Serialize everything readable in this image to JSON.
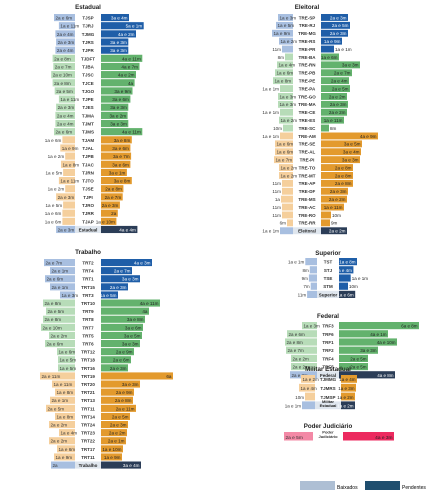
{
  "colors": {
    "baixados_light": "#a8bfe0",
    "pendentes_dark": "#1f5ea8",
    "green_light": "#b7dcb8",
    "green": "#63b26d",
    "orange_light": "#f5cf9c",
    "orange": "#e39a2d",
    "pink_light": "#f389a6",
    "pink": "#ec2a5f",
    "group_separator": "#2b3d57",
    "group_separator_label": "#ffffff",
    "legend_baixados": "#aebfd4",
    "legend_pendentes": "#1f4e6e"
  },
  "legend": {
    "baixados": "Baixados",
    "pendentes": "Pendentes"
  },
  "chart_data": [
    {
      "type": "bar",
      "title": "Estadual",
      "series": [
        {
          "name": "Baixados"
        },
        {
          "name": "Pendentes"
        }
      ],
      "rows": [
        {
          "label": "TJSP",
          "left": "2a e 6m",
          "right": "3a e 4m",
          "l": 30,
          "r": 40,
          "c": "blue"
        },
        {
          "label": "TJRJ",
          "left": "1a e 11m",
          "right": "5a e 1m",
          "l": 23,
          "r": 61,
          "c": "blue"
        },
        {
          "label": "TJMG",
          "left": "2a e 4m",
          "right": "4a e 2m",
          "l": 28,
          "r": 50,
          "c": "blue"
        },
        {
          "label": "TJRS",
          "left": "2a e 3m",
          "right": "3a e 3m",
          "l": 27,
          "r": 39,
          "c": "blue"
        },
        {
          "label": "TJPR",
          "left": "2a e 4m",
          "right": "3a e 3m",
          "l": 28,
          "r": 39,
          "c": "blue"
        },
        {
          "label": "TJDFT",
          "left": "2a e 8m",
          "right": "4a e 11m",
          "l": 32,
          "r": 59,
          "c": "green"
        },
        {
          "label": "TJBA",
          "left": "2a e 7m",
          "right": "4a e 7m",
          "l": 31,
          "r": 55,
          "c": "green"
        },
        {
          "label": "TJSC",
          "left": "2a e 10m",
          "right": "4a e 2m",
          "l": 34,
          "r": 50,
          "c": "green"
        },
        {
          "label": "TJCE",
          "left": "2a e 8m",
          "right": "4a",
          "l": 32,
          "r": 48,
          "c": "green"
        },
        {
          "label": "TJGO",
          "left": "2a e 5m",
          "right": "3a e 9m",
          "l": 29,
          "r": 45,
          "c": "green"
        },
        {
          "label": "TJPE",
          "left": "1a e 11m",
          "right": "3a e 6m",
          "l": 23,
          "r": 42,
          "c": "green"
        },
        {
          "label": "TJES",
          "left": "2a e 3m",
          "right": "3a e 3m",
          "l": 27,
          "r": 39,
          "c": "green"
        },
        {
          "label": "TJMA",
          "left": "2a e 4m",
          "right": "3a e 2m",
          "l": 28,
          "r": 38,
          "c": "green"
        },
        {
          "label": "TJMT",
          "left": "2a e 4m",
          "right": "3a e 3m",
          "l": 28,
          "r": 39,
          "c": "green"
        },
        {
          "label": "TJMS",
          "left": "2a e 6m",
          "right": "4a e 11m",
          "l": 30,
          "r": 59,
          "c": "green"
        },
        {
          "label": "TJAM",
          "left": "1a e 6m",
          "right": "3a e 8m",
          "l": 18,
          "r": 44,
          "c": "orange"
        },
        {
          "label": "TJAL",
          "left": "1a e 9m",
          "right": "3a e 6m",
          "l": 21,
          "r": 42,
          "c": "orange"
        },
        {
          "label": "TJPB",
          "left": "1a e 2m",
          "right": "3a e 7m",
          "l": 14,
          "r": 43,
          "c": "orange"
        },
        {
          "label": "TJAC",
          "left": "1a e 8m",
          "right": "3a e 6m",
          "l": 20,
          "r": 42,
          "c": "orange"
        },
        {
          "label": "TJRN",
          "left": "1a e 5m",
          "right": "3a e 1m",
          "l": 17,
          "r": 37,
          "c": "orange"
        },
        {
          "label": "TJTO",
          "left": "1a e 11m",
          "right": "3a e 8m",
          "l": 23,
          "r": 44,
          "c": "orange"
        },
        {
          "label": "TJSE",
          "left": "1a e 2m",
          "right": "2a e 8m",
          "l": 14,
          "r": 32,
          "c": "orange"
        },
        {
          "label": "TJPI",
          "left": "2a e 3m",
          "right": "2a e 7m",
          "l": 27,
          "r": 31,
          "c": "orange"
        },
        {
          "label": "TJRO",
          "left": "1a e 5m",
          "right": "2a e 3m",
          "l": 17,
          "r": 27,
          "c": "orange"
        },
        {
          "label": "TJRR",
          "left": "1a e 6m",
          "right": "2a",
          "l": 18,
          "r": 24,
          "c": "orange"
        },
        {
          "label": "TJAP",
          "left": "1a e 6m",
          "right": "1a e 10m",
          "l": 18,
          "r": 22,
          "c": "orange"
        },
        {
          "label": "Estadual",
          "left": "2a e 3m",
          "right": "4a e 4m",
          "l": 27,
          "r": 52,
          "c": "total"
        }
      ]
    },
    {
      "type": "bar",
      "title": "Eleitoral",
      "series": [
        {
          "name": "Baixados"
        },
        {
          "name": "Pendentes"
        }
      ],
      "rows": [
        {
          "label": "TRE-SP",
          "left": "1a e 3m",
          "right": "2a e 3m",
          "l": 15,
          "r": 27,
          "c": "blue"
        },
        {
          "label": "TRE-RJ",
          "left": "1a e 5m",
          "right": "2a e 5m",
          "l": 17,
          "r": 29,
          "c": "blue"
        },
        {
          "label": "TRE-MG",
          "left": "1a e 9m",
          "right": "2a e 3m",
          "l": 21,
          "r": 27,
          "c": "blue"
        },
        {
          "label": "TRE-RS",
          "left": "1a e 2m",
          "right": "1a e 9m",
          "l": 14,
          "r": 21,
          "c": "blue"
        },
        {
          "label": "TRE-PR",
          "left": "11m",
          "right": "1a e 1m",
          "l": 11,
          "r": 13,
          "c": "blue"
        },
        {
          "label": "TRE-BA",
          "left": "8m",
          "right": "1a e 6m",
          "l": 8,
          "r": 18,
          "c": "green"
        },
        {
          "label": "TRE-RN",
          "left": "1a e 4m",
          "right": "3a e 3m",
          "l": 16,
          "r": 39,
          "c": "green"
        },
        {
          "label": "TRE-PB",
          "left": "1a e 6m",
          "right": "2a e 7m",
          "l": 18,
          "r": 31,
          "c": "green"
        },
        {
          "label": "TRE-PE",
          "left": "1a e 8m",
          "right": "2a e 4m",
          "l": 20,
          "r": 28,
          "c": "green"
        },
        {
          "label": "TRE-PA",
          "left": "1a e 1m",
          "right": "2a e 5m",
          "l": 13,
          "r": 29,
          "c": "green"
        },
        {
          "label": "TRE-GO",
          "left": "1a e 3m",
          "right": "2a e 2m",
          "l": 15,
          "r": 26,
          "c": "green"
        },
        {
          "label": "TRE-MA",
          "left": "1a e 3m",
          "right": "2a e 3m",
          "l": 15,
          "r": 27,
          "c": "green"
        },
        {
          "label": "TRE-CE",
          "left": "1a e 1m",
          "right": "2a e 2m",
          "l": 13,
          "r": 26,
          "c": "green"
        },
        {
          "label": "TRE-ES",
          "left": "1a e 2m",
          "right": "1a e 11m",
          "l": 14,
          "r": 23,
          "c": "green"
        },
        {
          "label": "TRE-SC",
          "left": "10m",
          "right": "8m",
          "l": 10,
          "r": 8,
          "c": "green"
        },
        {
          "label": "TRE-AM",
          "left": "1a e 1m",
          "right": "4a e 9m",
          "l": 13,
          "r": 57,
          "c": "orange"
        },
        {
          "label": "TRE-SE",
          "left": "1a e 6m",
          "right": "3a e 5m",
          "l": 18,
          "r": 41,
          "c": "orange"
        },
        {
          "label": "TRE-AL",
          "left": "1a e 6m",
          "right": "3a e 4m",
          "l": 18,
          "r": 40,
          "c": "orange"
        },
        {
          "label": "TRE-PI",
          "left": "1a e 7m",
          "right": "3a e 3m",
          "l": 19,
          "r": 39,
          "c": "orange"
        },
        {
          "label": "TRE-TO",
          "left": "1a e 2m",
          "right": "2a e 8m",
          "l": 14,
          "r": 32,
          "c": "orange"
        },
        {
          "label": "TRE-MT",
          "left": "1a e 2m",
          "right": "2a e 8m",
          "l": 14,
          "r": 32,
          "c": "orange"
        },
        {
          "label": "TRE-AP",
          "left": "11m",
          "right": "2a e 8m",
          "l": 11,
          "r": 32,
          "c": "orange"
        },
        {
          "label": "TRE-DF",
          "left": "11m",
          "right": "2a e 3m",
          "l": 11,
          "r": 27,
          "c": "orange"
        },
        {
          "label": "TRE-MS",
          "left": "1a",
          "right": "2a e 2m",
          "l": 12,
          "r": 26,
          "c": "orange"
        },
        {
          "label": "TRE-AC",
          "left": "11m",
          "right": "1a e 11m",
          "l": 11,
          "r": 23,
          "c": "orange"
        },
        {
          "label": "TRE-RO",
          "left": "11m",
          "right": "10m",
          "l": 11,
          "r": 10,
          "c": "orange"
        },
        {
          "label": "TRE-RR",
          "left": "6m",
          "right": "9m",
          "l": 6,
          "r": 9,
          "c": "orange"
        },
        {
          "label": "Eleitoral",
          "left": "1a e 1m",
          "right": "2a e 2m",
          "l": 13,
          "r": 26,
          "c": "total"
        }
      ]
    },
    {
      "type": "bar",
      "title": "Trabalho",
      "series": [
        {
          "name": "Baixados"
        },
        {
          "name": "Pendentes"
        }
      ],
      "rows": [
        {
          "label": "TRT2",
          "left": "2a e 7m",
          "right": "4a e 3m",
          "l": 31,
          "r": 51,
          "c": "blue"
        },
        {
          "label": "TRT4",
          "left": "2a e 1m",
          "right": "2a e 7m",
          "l": 25,
          "r": 31,
          "c": "blue"
        },
        {
          "label": "TRT1",
          "left": "2a e 6m",
          "right": "3a e 3m",
          "l": 30,
          "r": 39,
          "c": "blue"
        },
        {
          "label": "TRT15",
          "left": "2a e 1m",
          "right": "2a e 3m",
          "l": 25,
          "r": 27,
          "c": "blue"
        },
        {
          "label": "TRT3",
          "left": "1a e 3m",
          "right": "1a e 5m",
          "l": 15,
          "r": 17,
          "c": "blue"
        },
        {
          "label": "TRT10",
          "left": "2a e 8m",
          "right": "4a e 11m",
          "l": 32,
          "r": 59,
          "c": "green"
        },
        {
          "label": "TRT9",
          "left": "2a e 5m",
          "right": "4a",
          "l": 29,
          "r": 48,
          "c": "green"
        },
        {
          "label": "TRT8",
          "left": "2a e 8m",
          "right": "3a e 8m",
          "l": 32,
          "r": 44,
          "c": "green"
        },
        {
          "label": "TRT7",
          "left": "2a e 10m",
          "right": "3a e 6m",
          "l": 34,
          "r": 42,
          "c": "green"
        },
        {
          "label": "TRT5",
          "left": "2a e 2m",
          "right": "3a e 5m",
          "l": 26,
          "r": 41,
          "c": "green"
        },
        {
          "label": "TRT6",
          "left": "2a e 6m",
          "right": "3a e 3m",
          "l": 30,
          "r": 39,
          "c": "green"
        },
        {
          "label": "TRT12",
          "left": "1a e 6m",
          "right": "2a e 9m",
          "l": 18,
          "r": 33,
          "c": "green"
        },
        {
          "label": "TRT18",
          "left": "1a e 5m",
          "right": "2a e 6m",
          "l": 17,
          "r": 30,
          "c": "green"
        },
        {
          "label": "TRT16",
          "left": "1a e 5m",
          "right": "2a e 3m",
          "l": 17,
          "r": 27,
          "c": "green"
        },
        {
          "label": "TRT19",
          "left": "2a e 11m",
          "right": "6a",
          "l": 35,
          "r": 72,
          "c": "orange"
        },
        {
          "label": "TRT20",
          "left": "1a e 11m",
          "right": "3a e 3m",
          "l": 23,
          "r": 39,
          "c": "orange"
        },
        {
          "label": "TRT21",
          "left": "1a e 8m",
          "right": "2a e 9m",
          "l": 20,
          "r": 33,
          "c": "orange"
        },
        {
          "label": "TRT13",
          "left": "2a e 1m",
          "right": "2a e 8m",
          "l": 25,
          "r": 32,
          "c": "orange"
        },
        {
          "label": "TRT11",
          "left": "2a e 5m",
          "right": "2a e 11m",
          "l": 29,
          "r": 35,
          "c": "orange"
        },
        {
          "label": "TRT14",
          "left": "1a e 8m",
          "right": "2a e 5m",
          "l": 20,
          "r": 29,
          "c": "orange"
        },
        {
          "label": "TRT24",
          "left": "2a e 2m",
          "right": "2a e 3m",
          "l": 26,
          "r": 27,
          "c": "orange"
        },
        {
          "label": "TRT23",
          "left": "1a e 4m",
          "right": "2a e 2m",
          "l": 16,
          "r": 26,
          "c": "orange"
        },
        {
          "label": "TRT22",
          "left": "2a e 2m",
          "right": "2a e 1m",
          "l": 26,
          "r": 25,
          "c": "orange"
        },
        {
          "label": "TRT17",
          "left": "1a e 6m",
          "right": "1a e 10m",
          "l": 18,
          "r": 22,
          "c": "orange"
        },
        {
          "label": "TRT11",
          "left": "1a e 9m",
          "right": "1a e 9m",
          "l": 21,
          "r": 21,
          "c": "orange"
        },
        {
          "label": "Trabalho",
          "left": "2a",
          "right": "3a e 4m",
          "l": 24,
          "r": 40,
          "c": "total"
        }
      ]
    },
    {
      "type": "bar",
      "title": "Superior",
      "series": [
        {
          "name": "Baixados"
        },
        {
          "name": "Pendentes"
        }
      ],
      "rows": [
        {
          "label": "TST",
          "left": "1a e 1m",
          "right": "1a e 8m",
          "l": 13,
          "r": 20,
          "c": "blue"
        },
        {
          "label": "STJ",
          "left": "8m",
          "right": "1a e 4m",
          "l": 8,
          "r": 16,
          "c": "blue"
        },
        {
          "label": "TSE",
          "left": "9m",
          "right": "1a e 1m",
          "l": 9,
          "r": 13,
          "c": "blue"
        },
        {
          "label": "STM",
          "left": "7m",
          "right": "10m",
          "l": 7,
          "r": 10,
          "c": "blue"
        },
        {
          "label": "Superior",
          "left": "11m",
          "right": "1a e 6m",
          "l": 11,
          "r": 18,
          "c": "total"
        }
      ]
    },
    {
      "type": "bar",
      "title": "Federal",
      "series": [
        {
          "name": "Baixados"
        },
        {
          "name": "Pendentes"
        }
      ],
      "rows": [
        {
          "label": "TRF3",
          "left": "1a e 3m",
          "right": "6a e 8m",
          "l": 15,
          "r": 80,
          "c": "green"
        },
        {
          "label": "TRF6",
          "left": "2a e 6m",
          "right": "4a e 1m",
          "l": 30,
          "r": 49,
          "c": "green"
        },
        {
          "label": "TRF1",
          "left": "2a e 8m",
          "right": "4a e 10m",
          "l": 32,
          "r": 58,
          "c": "green"
        },
        {
          "label": "TRF2",
          "left": "2a e 7m",
          "right": "3a e 3m",
          "l": 31,
          "r": 39,
          "c": "green"
        },
        {
          "label": "TRF4",
          "left": "2a e 2m",
          "right": "2a e 5m",
          "l": 26,
          "r": 29,
          "c": "green"
        },
        {
          "label": "TRF5",
          "left": "2a e 2m",
          "right": "2a e 5m",
          "l": 26,
          "r": 29,
          "c": "green"
        },
        {
          "label": "Federal",
          "left": "2a e 3m",
          "right": "4a e 8m",
          "l": 27,
          "r": 56,
          "c": "total"
        }
      ]
    },
    {
      "type": "bar",
      "title": "Militar Estadual",
      "series": [
        {
          "name": "Baixados"
        },
        {
          "name": "Pendentes"
        }
      ],
      "rows": [
        {
          "label": "TJMMG",
          "left": "1a e 2m",
          "right": "1a e 4m",
          "l": 14,
          "r": 16,
          "c": "orange"
        },
        {
          "label": "TJMRS",
          "left": "1a e 4m",
          "right": "1a e 3m",
          "l": 16,
          "r": 15,
          "c": "orange"
        },
        {
          "label": "TJMSP",
          "left": "10m",
          "right": "1a e 2m",
          "l": 10,
          "r": 14,
          "c": "orange"
        },
        {
          "label": "Militar Estadual",
          "left": "1a e 1m",
          "right": "1a e 2m",
          "l": 13,
          "r": 14,
          "c": "total"
        }
      ]
    },
    {
      "type": "bar",
      "title": "Poder Judiciário",
      "series": [
        {
          "name": "Baixados"
        },
        {
          "name": "Pendentes"
        }
      ],
      "rows": [
        {
          "label": "Poder Judiciário",
          "left": "2a e 5m",
          "right": "4a e 3m",
          "l": 29,
          "r": 51,
          "c": "pink"
        }
      ]
    }
  ]
}
